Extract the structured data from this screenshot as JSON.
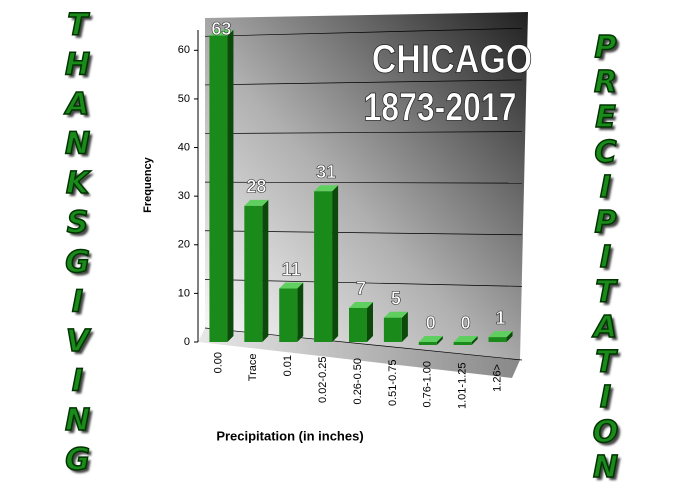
{
  "chart_data": {
    "type": "bar",
    "title": "CHICAGO",
    "subtitle": "1873-2017",
    "left_banner": "THANKSGIVING",
    "right_banner": "PRECIPITATION",
    "x_label": "Precipitation (in inches)",
    "y_label": "Frequency",
    "categories": [
      "0.00",
      "Trace",
      "0.01",
      "0.02-0.25",
      "0.26-0.50",
      "0.51-0.75",
      "0.76-1.00",
      "1.01-1.25",
      "1.26>"
    ],
    "values": [
      63,
      28,
      11,
      31,
      7,
      5,
      0,
      0,
      1
    ],
    "color": "#1a8a1a",
    "ylim": [
      0,
      65
    ],
    "yticks": [
      0,
      10,
      20,
      30,
      40,
      50,
      60
    ],
    "grid": true
  }
}
